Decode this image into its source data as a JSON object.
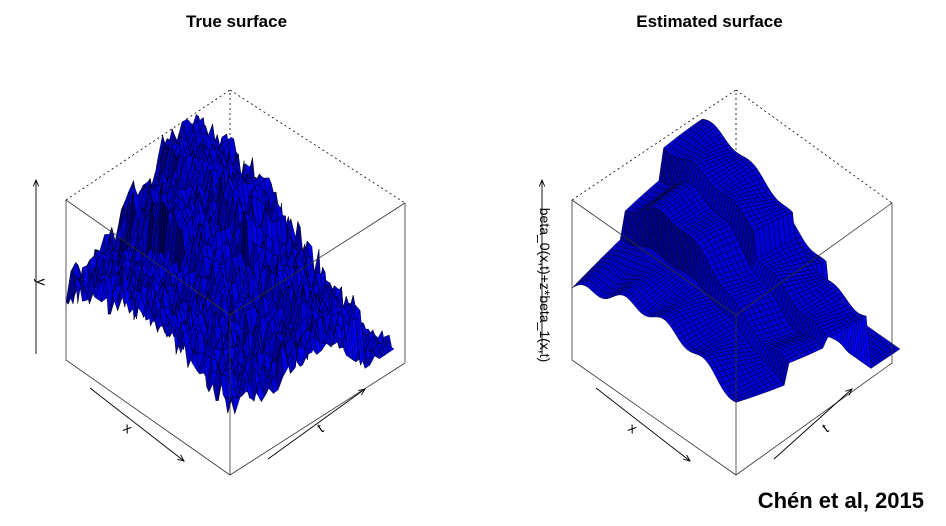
{
  "chart_data": [
    {
      "type": "surface",
      "title": "True surface",
      "xlabel": "x",
      "ylabel": "t",
      "zlabel": "y",
      "surface_color": "#0000ff",
      "edge_color": "#000000",
      "noisy": true
    },
    {
      "type": "surface",
      "title": "Estimated surface",
      "xlabel": "x",
      "ylabel": "t",
      "zlabel": "beta_0(x,t)+z*beta_1(x,t)",
      "surface_color": "#0000ff",
      "edge_color": "#000000",
      "noisy": false
    }
  ],
  "credit": "Chén et al, 2015"
}
